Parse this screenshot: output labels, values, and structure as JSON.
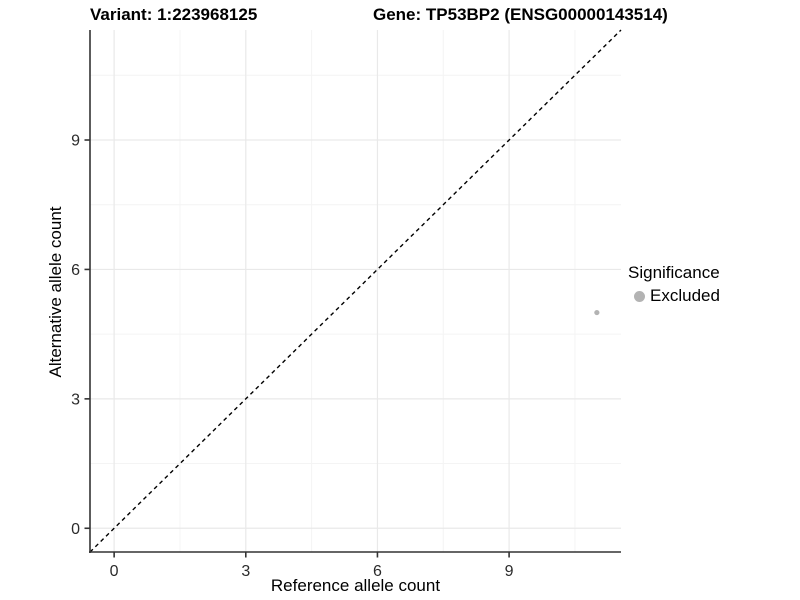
{
  "chart_data": {
    "type": "scatter",
    "titles": [
      "Variant: 1:223968125",
      "Gene: TP53BP2 (ENSG00000143514)"
    ],
    "xlabel": "Reference allele count",
    "ylabel": "Alternative allele count",
    "xlim": [
      -0.55,
      11.55
    ],
    "ylim": [
      -0.55,
      11.55
    ],
    "x_ticks": [
      0,
      3,
      6,
      9
    ],
    "y_ticks": [
      0,
      3,
      6,
      9
    ],
    "x_minor_ticks": [
      1.5,
      4.5,
      7.5,
      10.5
    ],
    "y_minor_ticks": [
      1.5,
      4.5,
      7.5,
      10.5
    ],
    "grid": true,
    "series": [
      {
        "name": "Excluded",
        "color": "#b3b3b3",
        "points": [
          {
            "x": 11,
            "y": 5
          }
        ]
      }
    ],
    "reference_line": {
      "type": "identity",
      "equation": "y = x",
      "style": "dashed",
      "color": "#000000"
    },
    "legend": {
      "title": "Significance",
      "position": "right",
      "items": [
        {
          "label": "Excluded",
          "marker": "circle-icon",
          "color": "#b3b3b3"
        }
      ]
    }
  },
  "colors": {
    "background": "#ffffff",
    "grid_major": "#e9e9e9",
    "grid_minor": "#f4f4f4",
    "axis_line": "#333333",
    "tick_mark": "#333333",
    "tick_text": "#2b2b2b",
    "title_text": "#000000"
  }
}
